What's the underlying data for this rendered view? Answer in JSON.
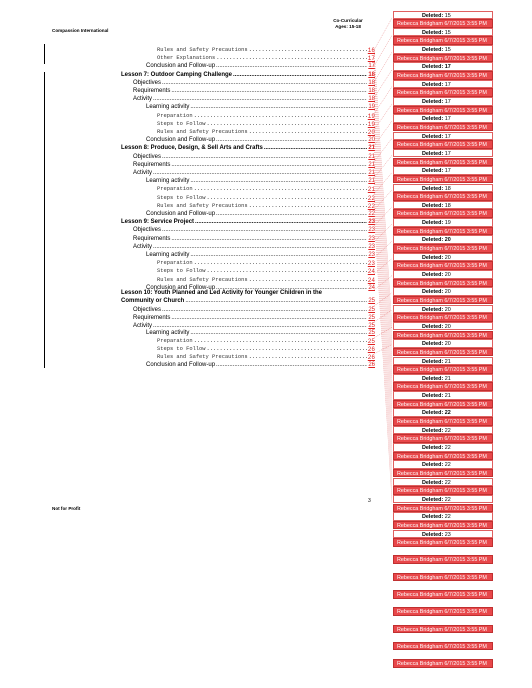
{
  "header": {
    "org": "Compassion International",
    "title_line1": "Co-Curricular",
    "title_line2": "Ages: 15-18"
  },
  "footer": {
    "left": "Not for Profit",
    "page": "3"
  },
  "toc": [
    {
      "text": "Rules and Safety Precautions",
      "page": "16",
      "style": "mono",
      "indent": 3
    },
    {
      "text": "Other Explanations",
      "page": "17",
      "style": "mono",
      "indent": 3
    },
    {
      "text": "Conclusion and Follow-up",
      "page": "17",
      "style": "plain",
      "indent": 2
    },
    {
      "text": "Lesson 7: Outdoor Camping Challenge",
      "page": "18",
      "style": "bold",
      "indent": 0
    },
    {
      "text": "Objectives",
      "page": "18",
      "style": "plain",
      "indent": 1
    },
    {
      "text": "Requirements",
      "page": "18",
      "style": "plain",
      "indent": 1
    },
    {
      "text": "Activity",
      "page": "18",
      "style": "plain",
      "indent": 1
    },
    {
      "text": "Learning activity",
      "page": "19",
      "style": "plain",
      "indent": 2
    },
    {
      "text": "Preparation",
      "page": "19",
      "style": "mono",
      "indent": 3
    },
    {
      "text": "Steps to Follow",
      "page": "19",
      "style": "mono",
      "indent": 3
    },
    {
      "text": "Rules and Safety Precautions",
      "page": "20",
      "style": "mono",
      "indent": 3
    },
    {
      "text": "Conclusion and Follow-up",
      "page": "20",
      "style": "plain",
      "indent": 2
    },
    {
      "text": "Lesson 8: Produce, Design, & Sell Arts and Crafts",
      "page": "21",
      "style": "bold",
      "indent": 0
    },
    {
      "text": "Objectives",
      "page": "21",
      "style": "plain",
      "indent": 1
    },
    {
      "text": "Requirements",
      "page": "21",
      "style": "plain",
      "indent": 1
    },
    {
      "text": "Activity",
      "page": "21",
      "style": "plain",
      "indent": 1
    },
    {
      "text": "Learning activity",
      "page": "21",
      "style": "plain",
      "indent": 2
    },
    {
      "text": "Preparation",
      "page": "21",
      "style": "mono",
      "indent": 3
    },
    {
      "text": "Steps to Follow",
      "page": "22",
      "style": "mono",
      "indent": 3
    },
    {
      "text": "Rules and Safety Precautions",
      "page": "22",
      "style": "mono",
      "indent": 3
    },
    {
      "text": "Conclusion and Follow-up",
      "page": "22",
      "style": "plain",
      "indent": 2
    },
    {
      "text": "Lesson 9: Service Project",
      "page": "23",
      "style": "bold",
      "indent": 0
    },
    {
      "text": "Objectives",
      "page": "23",
      "style": "plain",
      "indent": 1
    },
    {
      "text": "Requirements",
      "page": "23",
      "style": "plain",
      "indent": 1
    },
    {
      "text": "Activity",
      "page": "23",
      "style": "plain",
      "indent": 1
    },
    {
      "text": "Learning activity",
      "page": "23",
      "style": "plain",
      "indent": 2
    },
    {
      "text": "Preparation",
      "page": "23",
      "style": "mono",
      "indent": 3
    },
    {
      "text": "Steps to Follow",
      "page": "24",
      "style": "mono",
      "indent": 3
    },
    {
      "text": "Rules and Safety Precautions",
      "page": "24",
      "style": "mono",
      "indent": 3
    },
    {
      "text": "Conclusion and Follow-up",
      "page": "24",
      "style": "plain",
      "indent": 2
    }
  ],
  "lesson10": {
    "line1": "Lesson 10: Youth Planned and Led Activity for Younger Children in the",
    "line2": "Community or Church",
    "page": "25"
  },
  "toc2": [
    {
      "text": "Objectives",
      "page": "25",
      "style": "plain",
      "indent": 1
    },
    {
      "text": "Requirements",
      "page": "25",
      "style": "plain",
      "indent": 1
    },
    {
      "text": "Activity",
      "page": "25",
      "style": "plain",
      "indent": 1
    },
    {
      "text": "Learning activity",
      "page": "25",
      "style": "plain",
      "indent": 2
    },
    {
      "text": "Preparation",
      "page": "25",
      "style": "mono",
      "indent": 3
    },
    {
      "text": "Steps to Follow",
      "page": "26",
      "style": "mono",
      "indent": 3
    },
    {
      "text": "Rules and Safety Precautions",
      "page": "26",
      "style": "mono",
      "indent": 3
    },
    {
      "text": "Conclusion and Follow-up",
      "page": "26",
      "style": "plain",
      "indent": 2
    }
  ],
  "comments": [
    {
      "type": "del",
      "label": "Deleted:",
      "value": "15",
      "bold": false
    },
    {
      "type": "auth",
      "text": "Rebecca Bridgham 6/7/2015 3:55 PM"
    },
    {
      "type": "del",
      "label": "Deleted:",
      "value": "15",
      "bold": false
    },
    {
      "type": "auth",
      "text": "Rebecca Bridgham 6/7/2015 3:55 PM"
    },
    {
      "type": "del",
      "label": "Deleted:",
      "value": "15",
      "bold": false
    },
    {
      "type": "auth",
      "text": "Rebecca Bridgham 6/7/2015 3:55 PM"
    },
    {
      "type": "del",
      "label": "Deleted:",
      "value": "17",
      "bold": true
    },
    {
      "type": "auth",
      "text": "Rebecca Bridgham 6/7/2015 3:55 PM"
    },
    {
      "type": "del",
      "label": "Deleted:",
      "value": "17",
      "bold": false
    },
    {
      "type": "auth",
      "text": "Rebecca Bridgham 6/7/2015 3:55 PM"
    },
    {
      "type": "del",
      "label": "Deleted:",
      "value": "17",
      "bold": false
    },
    {
      "type": "auth",
      "text": "Rebecca Bridgham 6/7/2015 3:55 PM"
    },
    {
      "type": "del",
      "label": "Deleted:",
      "value": "17",
      "bold": false
    },
    {
      "type": "auth",
      "text": "Rebecca Bridgham 6/7/2015 3:55 PM"
    },
    {
      "type": "del",
      "label": "Deleted:",
      "value": "17",
      "bold": false
    },
    {
      "type": "auth",
      "text": "Rebecca Bridgham 6/7/2015 3:55 PM"
    },
    {
      "type": "del",
      "label": "Deleted:",
      "value": "17",
      "bold": false
    },
    {
      "type": "auth",
      "text": "Rebecca Bridgham 6/7/2015 3:55 PM"
    },
    {
      "type": "del",
      "label": "Deleted:",
      "value": "17",
      "bold": false
    },
    {
      "type": "auth",
      "text": "Rebecca Bridgham 6/7/2015 3:55 PM"
    },
    {
      "type": "del",
      "label": "Deleted:",
      "value": "18",
      "bold": false
    },
    {
      "type": "auth",
      "text": "Rebecca Bridgham 6/7/2015 3:55 PM"
    },
    {
      "type": "del",
      "label": "Deleted:",
      "value": "18",
      "bold": false
    },
    {
      "type": "auth",
      "text": "Rebecca Bridgham 6/7/2015 3:55 PM"
    },
    {
      "type": "del",
      "label": "Deleted:",
      "value": "19",
      "bold": false
    },
    {
      "type": "auth",
      "text": "Rebecca Bridgham 6/7/2015 3:55 PM"
    },
    {
      "type": "del",
      "label": "Deleted:",
      "value": "20",
      "bold": true
    },
    {
      "type": "auth",
      "text": "Rebecca Bridgham 6/7/2015 3:55 PM"
    },
    {
      "type": "del",
      "label": "Deleted:",
      "value": "20",
      "bold": false
    },
    {
      "type": "auth",
      "text": "Rebecca Bridgham 6/7/2015 3:55 PM"
    },
    {
      "type": "del",
      "label": "Deleted:",
      "value": "20",
      "bold": false
    },
    {
      "type": "auth",
      "text": "Rebecca Bridgham 6/7/2015 3:55 PM"
    },
    {
      "type": "del",
      "label": "Deleted:",
      "value": "20",
      "bold": false
    },
    {
      "type": "auth",
      "text": "Rebecca Bridgham 6/7/2015 3:55 PM"
    },
    {
      "type": "del",
      "label": "Deleted:",
      "value": "20",
      "bold": false
    },
    {
      "type": "auth",
      "text": "Rebecca Bridgham 6/7/2015 3:55 PM"
    },
    {
      "type": "del",
      "label": "Deleted:",
      "value": "20",
      "bold": false
    },
    {
      "type": "auth",
      "text": "Rebecca Bridgham 6/7/2015 3:55 PM"
    },
    {
      "type": "del",
      "label": "Deleted:",
      "value": "20",
      "bold": false
    },
    {
      "type": "auth",
      "text": "Rebecca Bridgham 6/7/2015 3:55 PM"
    },
    {
      "type": "del",
      "label": "Deleted:",
      "value": "21",
      "bold": false
    },
    {
      "type": "auth",
      "text": "Rebecca Bridgham 6/7/2015 3:55 PM"
    },
    {
      "type": "del",
      "label": "Deleted:",
      "value": "21",
      "bold": false
    },
    {
      "type": "auth",
      "text": "Rebecca Bridgham 6/7/2015 3:55 PM"
    },
    {
      "type": "del",
      "label": "Deleted:",
      "value": "21",
      "bold": false
    },
    {
      "type": "auth",
      "text": "Rebecca Bridgham 6/7/2015 3:55 PM"
    },
    {
      "type": "del",
      "label": "Deleted:",
      "value": "22",
      "bold": true
    },
    {
      "type": "auth",
      "text": "Rebecca Bridgham 6/7/2015 3:55 PM"
    },
    {
      "type": "del",
      "label": "Deleted:",
      "value": "22",
      "bold": false
    },
    {
      "type": "auth",
      "text": "Rebecca Bridgham 6/7/2015 3:55 PM"
    },
    {
      "type": "del",
      "label": "Deleted:",
      "value": "22",
      "bold": false
    },
    {
      "type": "auth",
      "text": "Rebecca Bridgham 6/7/2015 3:55 PM"
    },
    {
      "type": "del",
      "label": "Deleted:",
      "value": "22",
      "bold": false
    },
    {
      "type": "auth",
      "text": "Rebecca Bridgham 6/7/2015 3:55 PM"
    },
    {
      "type": "del",
      "label": "Deleted:",
      "value": "22",
      "bold": false
    },
    {
      "type": "auth",
      "text": "Rebecca Bridgham 6/7/2015 3:55 PM"
    },
    {
      "type": "del",
      "label": "Deleted:",
      "value": "22",
      "bold": false
    },
    {
      "type": "auth",
      "text": "Rebecca Bridgham 6/7/2015 3:55 PM"
    },
    {
      "type": "del",
      "label": "Deleted:",
      "value": "22",
      "bold": false
    },
    {
      "type": "auth",
      "text": "Rebecca Bridgham 6/7/2015 3:55 PM"
    },
    {
      "type": "del",
      "label": "Deleted:",
      "value": "23",
      "bold": false
    },
    {
      "type": "auth",
      "text": "Rebecca Bridgham 6/7/2015 3:55 PM"
    },
    {
      "type": "gap"
    },
    {
      "type": "auth",
      "text": "Rebecca Bridgham 6/7/2015 3:55 PM"
    },
    {
      "type": "gap"
    },
    {
      "type": "auth",
      "text": "Rebecca Bridgham 6/7/2015 3:55 PM"
    },
    {
      "type": "gap"
    },
    {
      "type": "auth",
      "text": "Rebecca Bridgham 6/7/2015 3:55 PM"
    },
    {
      "type": "gap"
    },
    {
      "type": "auth",
      "text": "Rebecca Bridgham 6/7/2015 3:55 PM"
    },
    {
      "type": "gap"
    },
    {
      "type": "auth",
      "text": "Rebecca Bridgham 6/7/2015 3:55 PM"
    },
    {
      "type": "gap"
    },
    {
      "type": "auth",
      "text": "Rebecca Bridgham 6/7/2015 3:55 PM"
    },
    {
      "type": "gap"
    },
    {
      "type": "auth",
      "text": "Rebecca Bridgham 6/7/2015 3:55 PM"
    }
  ]
}
